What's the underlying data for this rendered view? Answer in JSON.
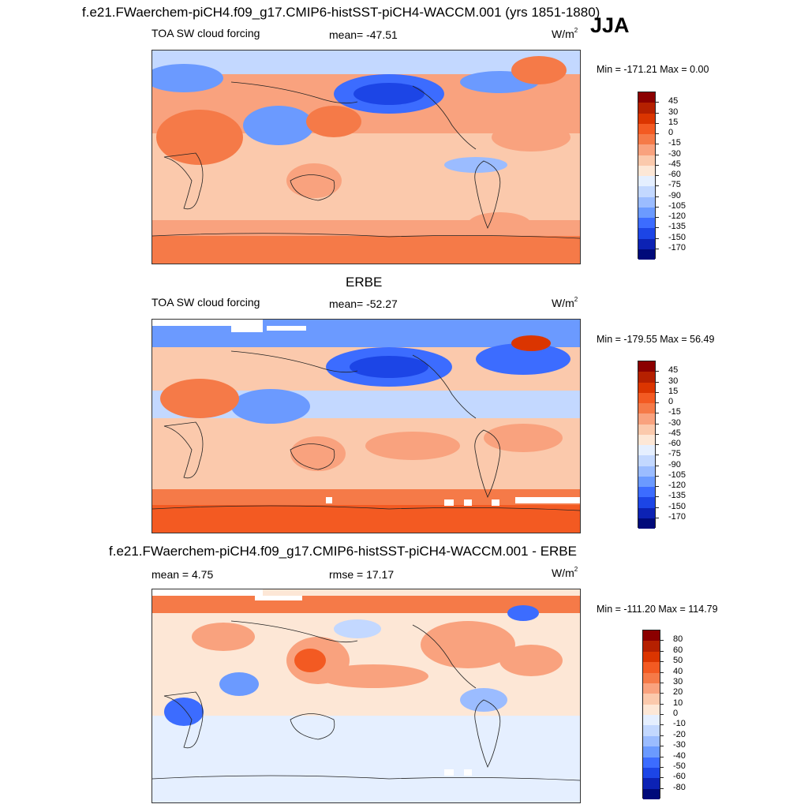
{
  "header": {
    "title": "f.e21.FWaerchem-piCH4.f09_g17.CMIP6-histSST-piCH4-WACCM.001 (yrs 1851-1880)",
    "season": "JJA"
  },
  "panels": [
    {
      "id": "model",
      "left_label": "TOA SW cloud forcing",
      "center_label": "mean= -47.51",
      "units_base": "W/m",
      "units_exp": "2",
      "minmax": "Min = -171.21 Max =   0.00",
      "colorbar_levels": [
        "45",
        "30",
        "15",
        "0",
        "-15",
        "-30",
        "-45",
        "-60",
        "-75",
        "-90",
        "-105",
        "-120",
        "-135",
        "-150",
        "-170"
      ],
      "colorbar_colors": [
        "#8b0000",
        "#b52000",
        "#db3500",
        "#f35a22",
        "#f57a48",
        "#f9a27e",
        "#fbc9ac",
        "#fde7d6",
        "#e5efff",
        "#c3d8ff",
        "#9bbcff",
        "#6b9aff",
        "#3c6cff",
        "#1c45e6",
        "#0c22b4",
        "#000a7a"
      ],
      "title_above": ""
    },
    {
      "id": "obs",
      "left_label": "TOA SW cloud forcing",
      "center_label": "mean= -52.27",
      "units_base": "W/m",
      "units_exp": "2",
      "minmax": "Min = -179.55 Max =  56.49",
      "colorbar_levels": [
        "45",
        "30",
        "15",
        "0",
        "-15",
        "-30",
        "-45",
        "-60",
        "-75",
        "-90",
        "-105",
        "-120",
        "-135",
        "-150",
        "-170"
      ],
      "colorbar_colors": [
        "#8b0000",
        "#b52000",
        "#db3500",
        "#f35a22",
        "#f57a48",
        "#f9a27e",
        "#fbc9ac",
        "#fde7d6",
        "#e5efff",
        "#c3d8ff",
        "#9bbcff",
        "#6b9aff",
        "#3c6cff",
        "#1c45e6",
        "#0c22b4",
        "#000a7a"
      ],
      "title_above": "ERBE"
    },
    {
      "id": "diff",
      "left_label": "mean =   4.75",
      "center_label": "rmse =  17.17",
      "units_base": "W/m",
      "units_exp": "2",
      "minmax": "Min = -111.20 Max = 114.79",
      "colorbar_levels": [
        "80",
        "60",
        "50",
        "40",
        "30",
        "20",
        "10",
        "0",
        "-10",
        "-20",
        "-30",
        "-40",
        "-50",
        "-60",
        "-80"
      ],
      "colorbar_colors": [
        "#8b0000",
        "#b52000",
        "#db3500",
        "#f35a22",
        "#f57a48",
        "#f9a27e",
        "#fbc9ac",
        "#fde7d6",
        "#e5efff",
        "#c3d8ff",
        "#9bbcff",
        "#6b9aff",
        "#3c6cff",
        "#1c45e6",
        "#0c22b4",
        "#000a7a"
      ],
      "title_above": "f.e21.FWaerchem-piCH4.f09_g17.CMIP6-histSST-piCH4-WACCM.001 - ERBE"
    }
  ]
}
